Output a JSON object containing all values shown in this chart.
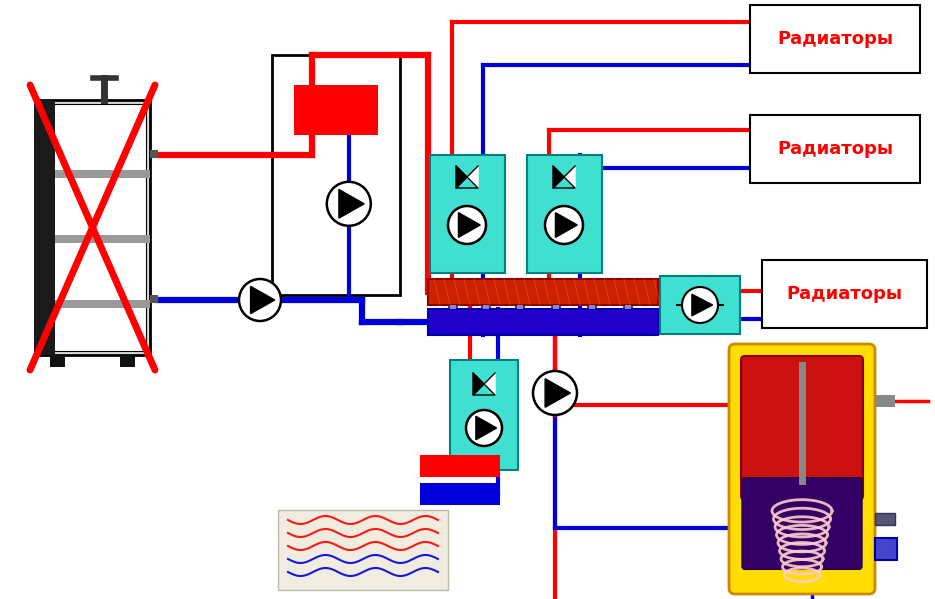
{
  "bg": "#ffffff",
  "red": "#ff0000",
  "blue": "#0000dd",
  "teal": "#40e0d0",
  "yellow": "#ffdd00",
  "dark_red": "#cc0000",
  "dark_blue": "#2200cc",
  "manifold_red": "#cc2200",
  "manifold_blue": "#2200cc",
  "label_rad": "Радиаторы",
  "lw": 3.0,
  "lw_thick": 4.5,
  "lw_main": 4.0
}
